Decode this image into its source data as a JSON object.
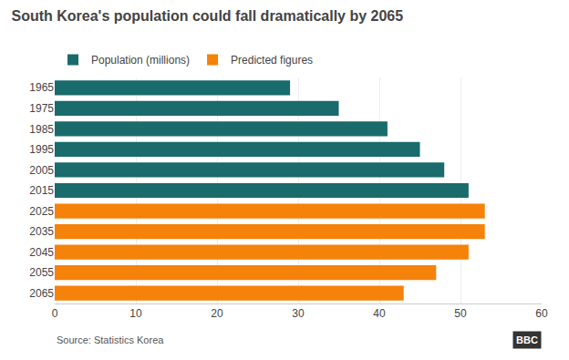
{
  "chart_data": {
    "type": "bar",
    "orientation": "horizontal",
    "title": "South Korea's population could fall dramatically by 2065",
    "annotations": [
      "Source: Statistics Korea",
      "BBC"
    ],
    "categories": [
      "1965",
      "1975",
      "1985",
      "1995",
      "2005",
      "2015",
      "2025",
      "2035",
      "2045",
      "2055",
      "2065"
    ],
    "series": [
      {
        "name": "Population (millions)",
        "color": "#1a6b6b",
        "values": [
          29,
          35,
          41,
          45,
          48,
          51,
          null,
          null,
          null,
          null,
          null
        ]
      },
      {
        "name": "Predicted figures",
        "color": "#f5820a",
        "values": [
          null,
          null,
          null,
          null,
          null,
          null,
          53,
          53,
          51,
          47,
          43
        ]
      }
    ],
    "xlim": [
      0,
      60
    ],
    "xticks": [
      0,
      10,
      20,
      30,
      40,
      50,
      60
    ],
    "grid": true,
    "legend": "top"
  }
}
